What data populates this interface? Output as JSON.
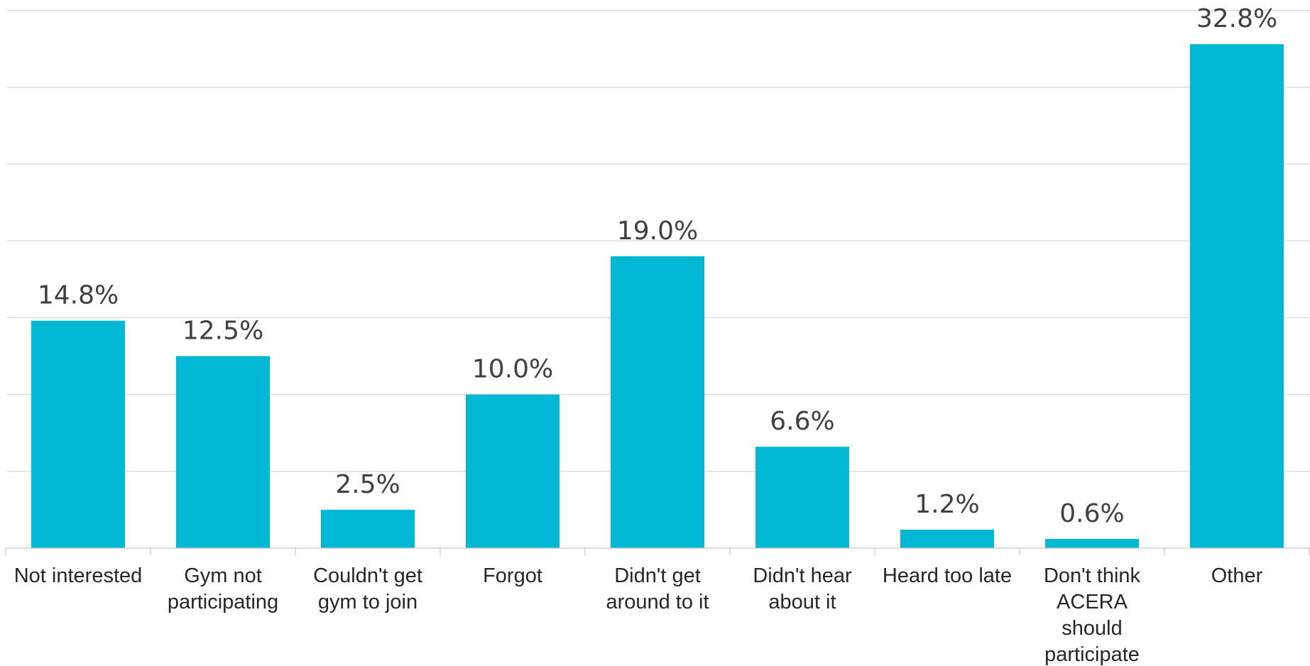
{
  "chart_data": {
    "type": "bar",
    "categories": [
      "Not interested",
      "Gym not participating",
      "Couldn't get gym to join",
      "Forgot",
      "Didn't get around to it",
      "Didn't hear about it",
      "Heard too late",
      "Don't think ACERA should participate",
      "Other"
    ],
    "category_lines": [
      [
        "Not interested"
      ],
      [
        "Gym not",
        "participating"
      ],
      [
        "Couldn't get",
        "gym to join"
      ],
      [
        "Forgot"
      ],
      [
        "Didn't get",
        "around to it"
      ],
      [
        "Didn't hear",
        "about it"
      ],
      [
        "Heard too late"
      ],
      [
        "Don't think",
        "ACERA",
        "should",
        "participate"
      ],
      [
        "Other"
      ]
    ],
    "values": [
      14.8,
      12.5,
      2.5,
      10.0,
      19.0,
      6.6,
      1.2,
      0.6,
      32.8
    ],
    "data_labels": [
      "14.8%",
      "12.5%",
      "2.5%",
      "10.0%",
      "19.0%",
      "6.6%",
      "1.2%",
      "0.6%",
      "32.8%"
    ],
    "unit": "%",
    "ylim": [
      0,
      35
    ],
    "grid_step": 5,
    "grid": true,
    "bar_color": "#00b8d4",
    "title": "",
    "xlabel": "",
    "ylabel": ""
  }
}
